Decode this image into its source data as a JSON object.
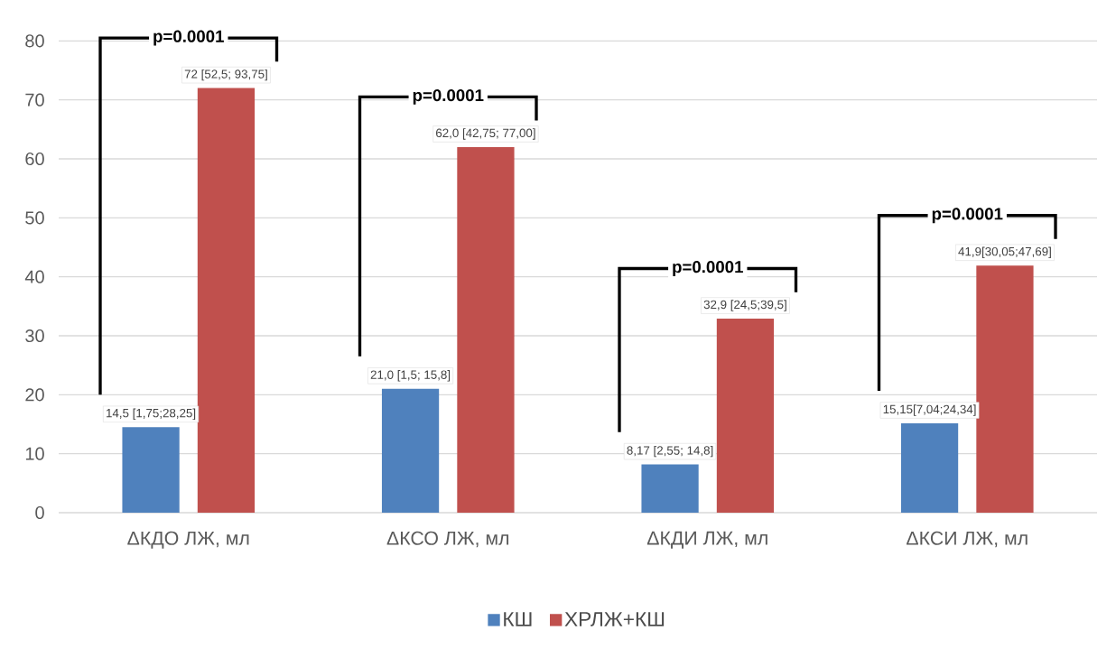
{
  "chart_data": {
    "type": "bar",
    "categories": [
      "ΔКДО ЛЖ, мл",
      "ΔКСО ЛЖ, мл",
      "ΔКДИ ЛЖ, мл",
      "ΔКСИ ЛЖ, мл"
    ],
    "series": [
      {
        "name": "КШ",
        "color": "#4f81bd",
        "values": [
          14.5,
          21.0,
          8.17,
          15.15
        ],
        "value_labels": [
          "14,5 [1,75;28,25]",
          "21,0 [1,5; 15,8]",
          "8,17 [2,55; 14,8]",
          "15,15[7,04;24,34]"
        ]
      },
      {
        "name": "ХРЛЖ+КШ",
        "color": "#c0504d",
        "values": [
          72,
          62.0,
          32.9,
          41.9
        ],
        "value_labels": [
          "72 [52,5; 93,75]",
          "62,0 [42,75; 77,00]",
          "32,9 [24,5;39,5]",
          "41,9[30,05;47,69]"
        ]
      }
    ],
    "ylim": [
      0,
      80
    ],
    "yticks": [
      0,
      10,
      20,
      30,
      40,
      50,
      60,
      70,
      80
    ],
    "grid": "y",
    "legend": "bottom",
    "annotations": [
      "p=0.0001",
      "p=0.0001",
      "p=0.0001",
      "p=0.0001"
    ]
  }
}
